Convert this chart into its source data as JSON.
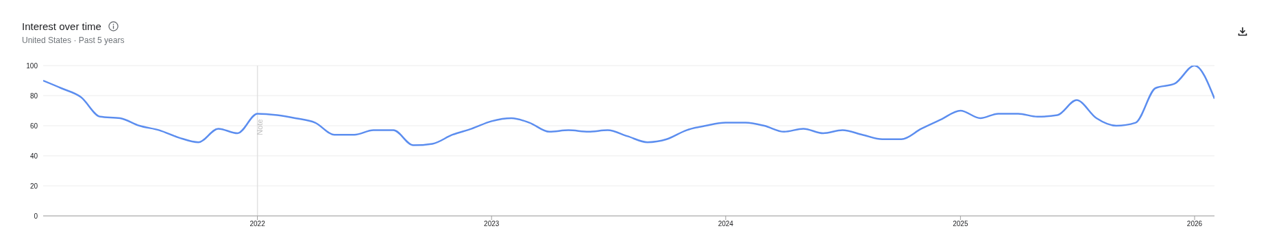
{
  "chart_data": {
    "type": "line",
    "title": "Interest over time",
    "subtitle": "United States · Past 5 years",
    "x": [
      "2021-02",
      "2021-03",
      "2021-04",
      "2021-05",
      "2021-06",
      "2021-07",
      "2021-08",
      "2021-09",
      "2021-10",
      "2021-11",
      "2021-12",
      "2022-01",
      "2022-02",
      "2022-03",
      "2022-04",
      "2022-05",
      "2022-06",
      "2022-07",
      "2022-08",
      "2022-09",
      "2022-10",
      "2022-11",
      "2022-12",
      "2023-01",
      "2023-02",
      "2023-03",
      "2023-04",
      "2023-05",
      "2023-06",
      "2023-07",
      "2023-08",
      "2023-09",
      "2023-10",
      "2023-11",
      "2023-12",
      "2024-01",
      "2024-02",
      "2024-03",
      "2024-04",
      "2024-05",
      "2024-06",
      "2024-07",
      "2024-08",
      "2024-09",
      "2024-10",
      "2024-11",
      "2024-12",
      "2025-01",
      "2025-02",
      "2025-03",
      "2025-04",
      "2025-05",
      "2025-06",
      "2025-07",
      "2025-08",
      "2025-09",
      "2025-10",
      "2025-11",
      "2025-12",
      "2026-01",
      "2026-02"
    ],
    "series": [
      {
        "color": "#5b8def",
        "values": [
          90,
          85,
          79,
          66,
          65,
          60,
          57,
          52,
          49,
          58,
          55,
          68,
          67,
          65,
          62,
          54,
          54,
          57,
          57,
          47,
          48,
          54,
          58,
          63,
          65,
          62,
          56,
          57,
          56,
          57,
          53,
          49,
          51,
          57,
          60,
          62,
          62,
          60,
          56,
          58,
          55,
          57,
          54,
          51,
          51,
          58,
          64,
          70,
          65,
          68,
          68,
          66,
          67,
          77,
          65,
          60,
          62,
          85,
          88,
          100,
          78
        ]
      }
    ],
    "xlim": [
      "2021-02",
      "2026-02"
    ],
    "xticks": [
      "2022",
      "2023",
      "2024",
      "2025",
      "2026"
    ],
    "ylim": [
      0,
      100
    ],
    "yticks": [
      0,
      20,
      40,
      60,
      80,
      100
    ],
    "grid": "y",
    "ref_lines": [
      {
        "axis": "x",
        "value": "2022-01",
        "label": "Note",
        "color": "#e0e0e0"
      }
    ]
  }
}
